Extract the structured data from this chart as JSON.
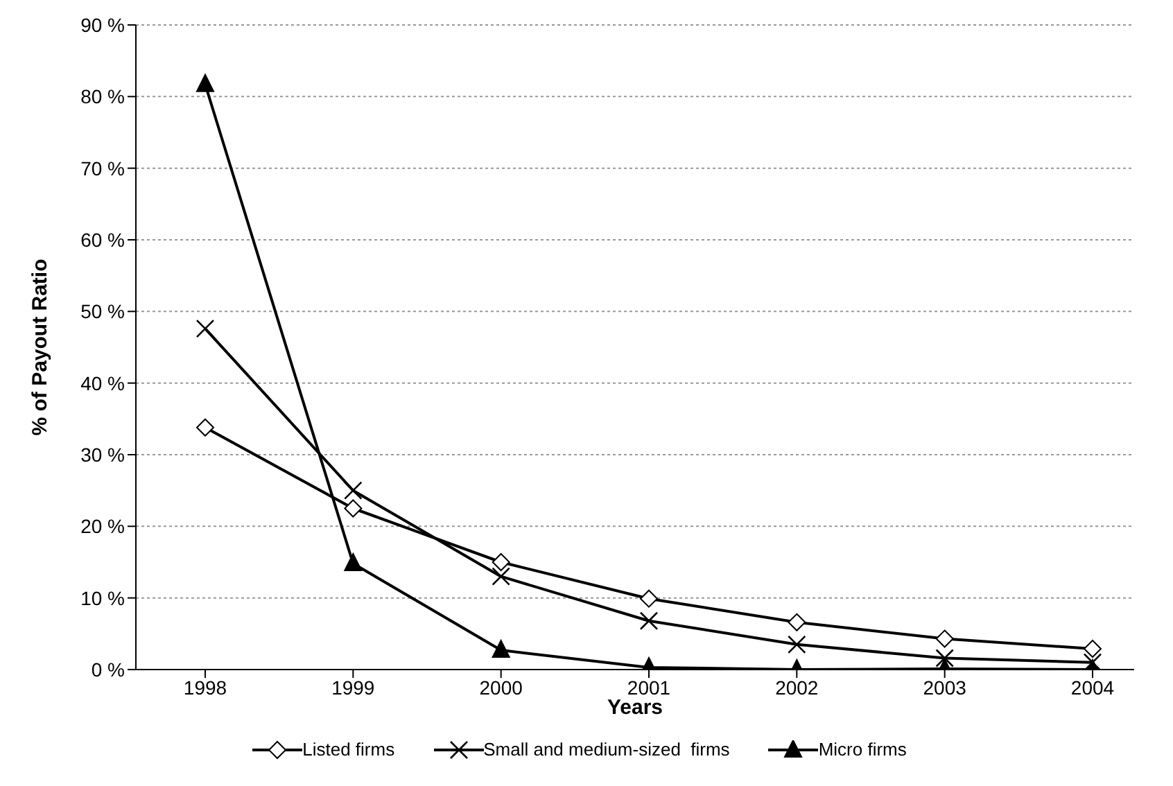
{
  "chart_data": {
    "type": "line",
    "xlabel": "Years",
    "ylabel": "% of Payout Ratio",
    "categories": [
      "1998",
      "1999",
      "2000",
      "2001",
      "2002",
      "2003",
      "2004"
    ],
    "series": [
      {
        "name": "Listed firms",
        "color": "#000000",
        "marker": "diamond",
        "values": [
          33.8,
          22.5,
          15,
          9.9,
          6.6,
          4.3,
          2.9
        ]
      },
      {
        "name": "Small and medium-sized  firms",
        "color": "#000000",
        "marker": "cross",
        "values": [
          47.6,
          25,
          13,
          6.8,
          3.5,
          1.6,
          1
        ]
      },
      {
        "name": "Micro firms",
        "color": "#000000",
        "marker": "triangle",
        "values": [
          81.7,
          14.8,
          2.7,
          0.3,
          0,
          0.1,
          0
        ]
      }
    ],
    "ylim": [
      0,
      90
    ],
    "yticks": [
      {
        "value": 0,
        "label": "0 %"
      },
      {
        "value": 10,
        "label": "10 %"
      },
      {
        "value": 20,
        "label": "20 %"
      },
      {
        "value": 30,
        "label": "30 %"
      },
      {
        "value": 40,
        "label": "40 %"
      },
      {
        "value": 50,
        "label": "50 %"
      },
      {
        "value": 60,
        "label": "60 %"
      },
      {
        "value": 70,
        "label": "70 %"
      },
      {
        "value": 80,
        "label": "80 %"
      },
      {
        "value": 90,
        "label": "90 %"
      }
    ],
    "grid": "y",
    "legend": "bottom"
  }
}
